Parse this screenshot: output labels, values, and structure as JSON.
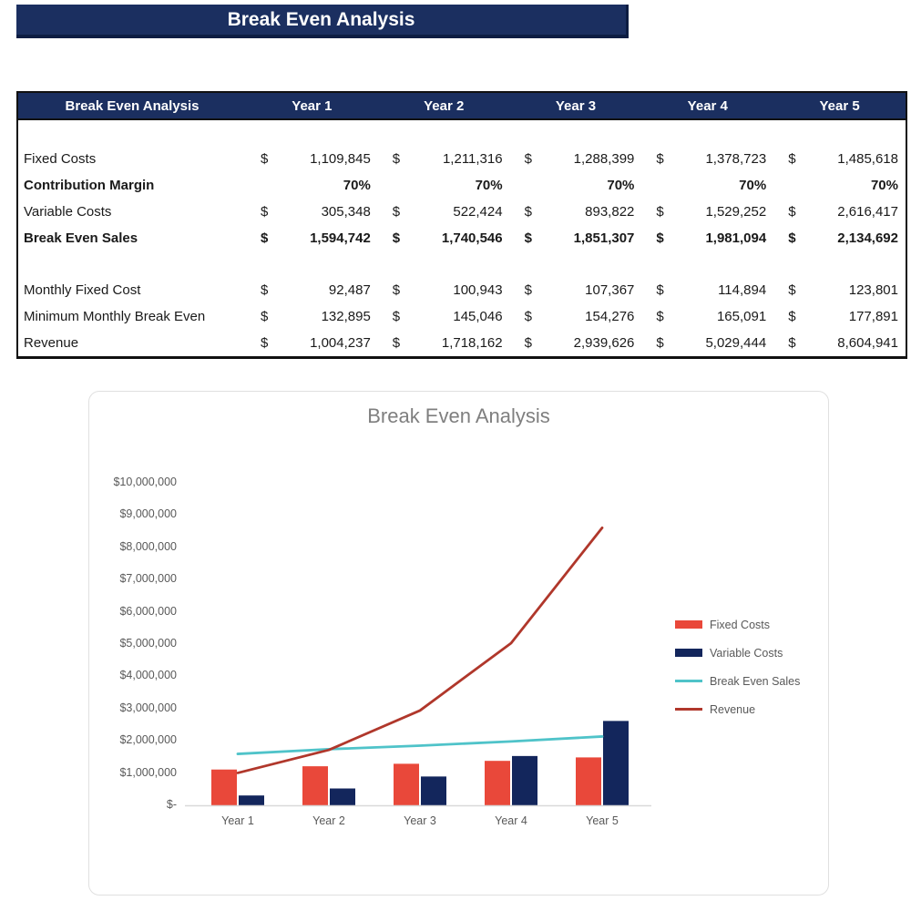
{
  "banner": {
    "title": "Break Even Analysis"
  },
  "table": {
    "header": [
      "Break Even Analysis",
      "Year 1",
      "Year 2",
      "Year 3",
      "Year 4",
      "Year 5"
    ],
    "rows": [
      {
        "label": "Fixed Costs",
        "cur": "$",
        "values": [
          "1,109,845",
          "1,211,316",
          "1,288,399",
          "1,378,723",
          "1,485,618"
        ]
      },
      {
        "label": "Contribution Margin",
        "cur": "",
        "values": [
          "70%",
          "70%",
          "70%",
          "70%",
          "70%"
        ]
      },
      {
        "label": "Variable Costs",
        "cur": "$",
        "values": [
          "305,348",
          "522,424",
          "893,822",
          "1,529,252",
          "2,616,417"
        ]
      },
      {
        "label": "Break Even Sales",
        "cur": "$",
        "values": [
          "1,594,742",
          "1,740,546",
          "1,851,307",
          "1,981,094",
          "2,134,692"
        ]
      },
      {
        "label": "Monthly Fixed Cost",
        "cur": "$",
        "values": [
          "92,487",
          "100,943",
          "107,367",
          "114,894",
          "123,801"
        ]
      },
      {
        "label": "Minimum Monthly Break Even",
        "cur": "$",
        "values": [
          "132,895",
          "145,046",
          "154,276",
          "165,091",
          "177,891"
        ]
      },
      {
        "label": "Revenue",
        "cur": "$",
        "values": [
          "1,004,237",
          "1,718,162",
          "2,939,626",
          "5,029,444",
          "8,604,941"
        ]
      }
    ]
  },
  "chart_data": {
    "type": "bar",
    "subtype": "combo bar+line",
    "title": "Break Even Analysis",
    "categories": [
      "Year 1",
      "Year 2",
      "Year 3",
      "Year 4",
      "Year 5"
    ],
    "series": [
      {
        "name": "Fixed Costs",
        "type": "bar",
        "color": "#e9483a",
        "values": [
          1109845,
          1211316,
          1288399,
          1378723,
          1485618
        ]
      },
      {
        "name": "Variable Costs",
        "type": "bar",
        "color": "#13265c",
        "values": [
          305348,
          522424,
          893822,
          1529252,
          2616417
        ]
      },
      {
        "name": "Break Even Sales",
        "type": "line",
        "color": "#4fc3c9",
        "values": [
          1594742,
          1740546,
          1851307,
          1981094,
          2134692
        ]
      },
      {
        "name": "Revenue",
        "type": "line",
        "color": "#b0372b",
        "values": [
          1004237,
          1718162,
          2939626,
          5029444,
          8604941
        ]
      }
    ],
    "y_axis": {
      "min": 0,
      "max": 10000000,
      "step": 1000000,
      "tick_labels": [
        "$-",
        "$1,000,000",
        "$2,000,000",
        "$3,000,000",
        "$4,000,000",
        "$5,000,000",
        "$6,000,000",
        "$7,000,000",
        "$8,000,000",
        "$9,000,000",
        "$10,000,000"
      ]
    },
    "gridlines": false,
    "legend_position": "right",
    "axis_color": "#d9d9d9"
  }
}
